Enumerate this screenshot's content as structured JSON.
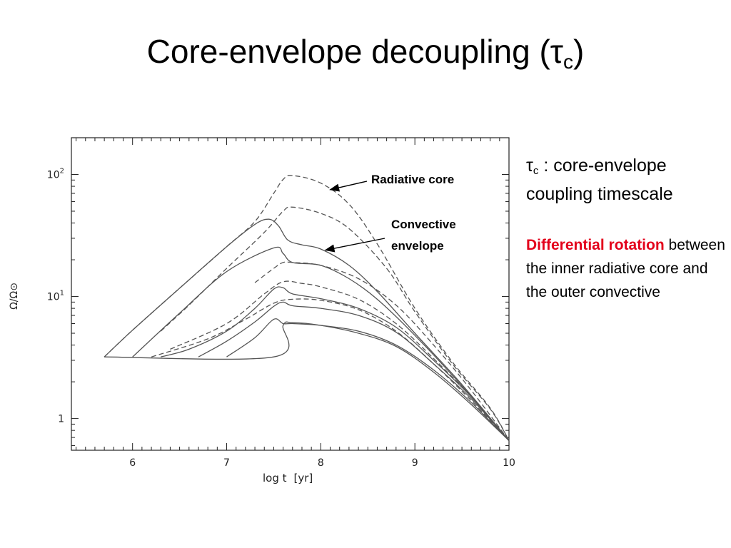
{
  "slide": {
    "title_main": "Core-envelope decoupling (τ",
    "title_sub": "c",
    "title_end": ")"
  },
  "side_text": {
    "def_symbol": "τ",
    "def_sub": "c",
    "def_text": " : core-envelope coupling timescale",
    "highlight": "Differential rotation",
    "body": " between the inner radiative core and the outer convective"
  },
  "colors": {
    "highlight": "#e3001b",
    "curve": "#555555"
  },
  "chart_data": {
    "type": "line",
    "xlabel": "log t",
    "xunit": "[yr]",
    "ylabel": "Ω/Ω⊙",
    "yscale": "log",
    "xlim": [
      5.35,
      10
    ],
    "ylim": [
      0.55,
      200
    ],
    "x_ticks": [
      "6",
      "7",
      "8",
      "9",
      "10"
    ],
    "y_ticks": [
      {
        "value": 100,
        "base": "10",
        "exp": "2"
      },
      {
        "value": 10,
        "base": "10",
        "exp": "1"
      },
      {
        "value": 1,
        "base": "1",
        "exp": ""
      }
    ],
    "annotations": [
      {
        "text": "Radiative core",
        "points_to": [
          8.1,
          75
        ]
      },
      {
        "text": "Convective envelope",
        "points_to": [
          8.05,
          24
        ]
      }
    ],
    "series": [
      {
        "style": "dashed",
        "x": [
          5.7,
          6.0,
          6.5,
          7.0,
          7.3,
          7.5,
          7.6,
          7.7,
          8.0,
          8.3,
          8.6,
          9.0,
          9.4,
          9.8,
          10.0
        ],
        "y": [
          3.2,
          5.3,
          11.7,
          25.6,
          41.2,
          70.0,
          91.0,
          98.0,
          85.0,
          57.0,
          27.0,
          8.0,
          2.9,
          1.22,
          0.66
        ]
      },
      {
        "style": "dashed",
        "x": [
          6.3,
          6.6,
          7.0,
          7.4,
          7.6,
          7.7,
          8.0,
          8.3,
          8.7,
          9.0,
          9.4,
          9.8,
          10.0
        ],
        "y": [
          5.2,
          8.5,
          17.0,
          33.5,
          50.0,
          54.0,
          48.0,
          36.0,
          17.0,
          7.5,
          2.8,
          1.2,
          0.66
        ]
      },
      {
        "style": "dashed",
        "x": [
          7.3,
          7.5,
          7.6,
          7.7,
          8.0,
          8.4,
          8.8,
          9.2,
          9.6,
          10.0
        ],
        "y": [
          13.0,
          17.0,
          19.0,
          19.0,
          18.0,
          14.0,
          8.5,
          4.0,
          1.7,
          0.66
        ]
      },
      {
        "style": "dashed",
        "x": [
          6.4,
          7.0,
          7.4,
          7.6,
          7.8,
          8.0,
          8.4,
          8.8,
          9.2,
          9.6,
          10.0
        ],
        "y": [
          3.7,
          6.0,
          10.5,
          13.2,
          12.8,
          12.0,
          9.5,
          6.0,
          3.1,
          1.5,
          0.66
        ]
      },
      {
        "style": "dashed",
        "x": [
          6.2,
          6.8,
          7.2,
          7.5,
          7.7,
          8.0,
          8.4,
          8.8,
          9.2,
          9.6,
          10.0
        ],
        "y": [
          3.2,
          4.5,
          6.5,
          8.8,
          9.5,
          9.3,
          7.8,
          5.2,
          2.8,
          1.4,
          0.66
        ]
      },
      {
        "style": "solid",
        "x": [
          5.7,
          6.0,
          6.5,
          7.0,
          7.3,
          7.45,
          7.55,
          7.65,
          7.8,
          8.0,
          8.3,
          8.6,
          9.0,
          9.5,
          10.0
        ],
        "y": [
          3.2,
          5.3,
          11.7,
          25.6,
          39.0,
          43.0,
          38.0,
          29.0,
          26.5,
          24.5,
          18.0,
          11.0,
          5.0,
          1.9,
          0.66
        ]
      },
      {
        "style": "solid",
        "x": [
          6.0,
          6.5,
          7.0,
          7.5,
          7.6,
          7.7,
          8.0,
          8.3,
          8.6,
          9.0,
          9.5,
          10.0
        ],
        "y": [
          3.2,
          7.3,
          16.0,
          25.0,
          22.5,
          19.0,
          18.0,
          14.0,
          9.5,
          4.8,
          1.85,
          0.66
        ]
      },
      {
        "style": "solid",
        "x": [
          6.3,
          6.6,
          7.0,
          7.3,
          7.5,
          7.6,
          7.7,
          8.0,
          8.4,
          8.8,
          9.2,
          9.6,
          10.0
        ],
        "y": [
          3.2,
          3.7,
          5.2,
          8.0,
          11.5,
          11.8,
          10.5,
          9.6,
          8.0,
          5.6,
          3.0,
          1.5,
          0.66
        ]
      },
      {
        "style": "solid",
        "x": [
          6.7,
          7.0,
          7.3,
          7.5,
          7.6,
          7.7,
          8.0,
          8.4,
          8.8,
          9.2,
          9.6,
          10.0
        ],
        "y": [
          3.2,
          4.3,
          6.2,
          8.3,
          9.0,
          8.4,
          8.0,
          7.0,
          5.1,
          2.8,
          1.45,
          0.66
        ]
      },
      {
        "style": "solid",
        "x": [
          7.0,
          7.3,
          7.5,
          7.6,
          7.7,
          8.0,
          8.4,
          8.8,
          9.2,
          9.6,
          10.0
        ],
        "y": [
          3.2,
          4.6,
          6.5,
          6.0,
          6.0,
          5.8,
          5.2,
          4.0,
          2.5,
          1.35,
          0.66
        ]
      },
      {
        "style": "solid",
        "x": [
          5.7,
          7.5,
          7.6,
          7.7,
          8.0,
          8.4,
          8.8,
          9.2,
          9.6,
          10.0
        ],
        "y": [
          3.2,
          3.2,
          5.8,
          6.1,
          5.8,
          5.0,
          3.9,
          2.4,
          1.3,
          0.66
        ]
      }
    ]
  }
}
